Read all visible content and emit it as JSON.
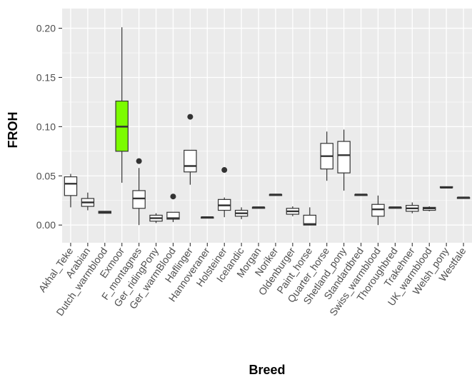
{
  "chart_data": {
    "type": "boxplot",
    "xlabel": "Breed",
    "ylabel": "FROH",
    "ylim": [
      -0.018,
      0.22
    ],
    "yticks": [
      0.0,
      0.05,
      0.1,
      0.15,
      0.2
    ],
    "ytick_labels": [
      "0.00",
      "0.05",
      "0.10",
      "0.15",
      "0.20"
    ],
    "grid": true,
    "panel_background": "#ebebeb",
    "grid_color": "#ffffff",
    "box_fill_default": "#ffffff",
    "highlight_fill": "#7cfc00",
    "categories": [
      "Akhal_Teke",
      "Arabian",
      "Dutch_warmblood",
      "Exmoor",
      "F_montagnes",
      "Ger_ridingPony",
      "Ger_warmBlood",
      "Haflinger",
      "Hannoveraner",
      "Holsteiner",
      "Icelandic",
      "Morgan",
      "Noriker",
      "Oldenburger",
      "Paint_horse",
      "Quarter_horse",
      "Shetland_pony",
      "Standardbred",
      "Swiss_warmblood",
      "Thoroughbred",
      "Trakehner",
      "UK_warmblood",
      "Welsh_pony",
      "Westfale"
    ],
    "boxes": [
      {
        "low": 0.018,
        "q1": 0.03,
        "median": 0.042,
        "q3": 0.049,
        "high": 0.052,
        "outliers": []
      },
      {
        "low": 0.015,
        "q1": 0.019,
        "median": 0.023,
        "q3": 0.027,
        "high": 0.033,
        "outliers": []
      },
      {
        "low": 0.012,
        "q1": 0.012,
        "median": 0.013,
        "q3": 0.014,
        "high": 0.014,
        "outliers": []
      },
      {
        "low": 0.043,
        "q1": 0.075,
        "median": 0.1,
        "q3": 0.126,
        "high": 0.201,
        "outliers": [],
        "highlight": true
      },
      {
        "low": 0.0,
        "q1": 0.017,
        "median": 0.027,
        "q3": 0.035,
        "high": 0.058,
        "outliers": [
          0.065
        ]
      },
      {
        "low": 0.002,
        "q1": 0.004,
        "median": 0.007,
        "q3": 0.01,
        "high": 0.012,
        "outliers": []
      },
      {
        "low": 0.003,
        "q1": 0.006,
        "median": 0.007,
        "q3": 0.013,
        "high": 0.013,
        "outliers": [
          0.029
        ]
      },
      {
        "low": 0.041,
        "q1": 0.054,
        "median": 0.06,
        "q3": 0.076,
        "high": 0.076,
        "outliers": [
          0.11
        ]
      },
      {
        "low": 0.007,
        "q1": 0.007,
        "median": 0.008,
        "q3": 0.008,
        "high": 0.008,
        "outliers": []
      },
      {
        "low": 0.008,
        "q1": 0.015,
        "median": 0.02,
        "q3": 0.026,
        "high": 0.028,
        "outliers": [
          0.056
        ]
      },
      {
        "low": 0.006,
        "q1": 0.009,
        "median": 0.012,
        "q3": 0.015,
        "high": 0.018,
        "outliers": []
      },
      {
        "low": 0.017,
        "q1": 0.017,
        "median": 0.018,
        "q3": 0.018,
        "high": 0.018,
        "outliers": []
      },
      {
        "low": 0.03,
        "q1": 0.03,
        "median": 0.031,
        "q3": 0.031,
        "high": 0.031,
        "outliers": []
      },
      {
        "low": 0.009,
        "q1": 0.011,
        "median": 0.014,
        "q3": 0.017,
        "high": 0.019,
        "outliers": []
      },
      {
        "low": 0.0,
        "q1": 0.0,
        "median": 0.001,
        "q3": 0.01,
        "high": 0.018,
        "outliers": []
      },
      {
        "low": 0.045,
        "q1": 0.057,
        "median": 0.07,
        "q3": 0.083,
        "high": 0.095,
        "outliers": []
      },
      {
        "low": 0.035,
        "q1": 0.053,
        "median": 0.071,
        "q3": 0.085,
        "high": 0.097,
        "outliers": []
      },
      {
        "low": 0.03,
        "q1": 0.03,
        "median": 0.031,
        "q3": 0.031,
        "high": 0.031,
        "outliers": []
      },
      {
        "low": 0.0,
        "q1": 0.009,
        "median": 0.016,
        "q3": 0.021,
        "high": 0.03,
        "outliers": []
      },
      {
        "low": 0.017,
        "q1": 0.017,
        "median": 0.018,
        "q3": 0.018,
        "high": 0.018,
        "outliers": []
      },
      {
        "low": 0.012,
        "q1": 0.014,
        "median": 0.017,
        "q3": 0.02,
        "high": 0.023,
        "outliers": []
      },
      {
        "low": 0.014,
        "q1": 0.015,
        "median": 0.017,
        "q3": 0.018,
        "high": 0.019,
        "outliers": []
      },
      {
        "low": 0.038,
        "q1": 0.038,
        "median": 0.038,
        "q3": 0.039,
        "high": 0.039,
        "outliers": []
      },
      {
        "low": 0.027,
        "q1": 0.027,
        "median": 0.028,
        "q3": 0.028,
        "high": 0.028,
        "outliers": []
      }
    ]
  }
}
